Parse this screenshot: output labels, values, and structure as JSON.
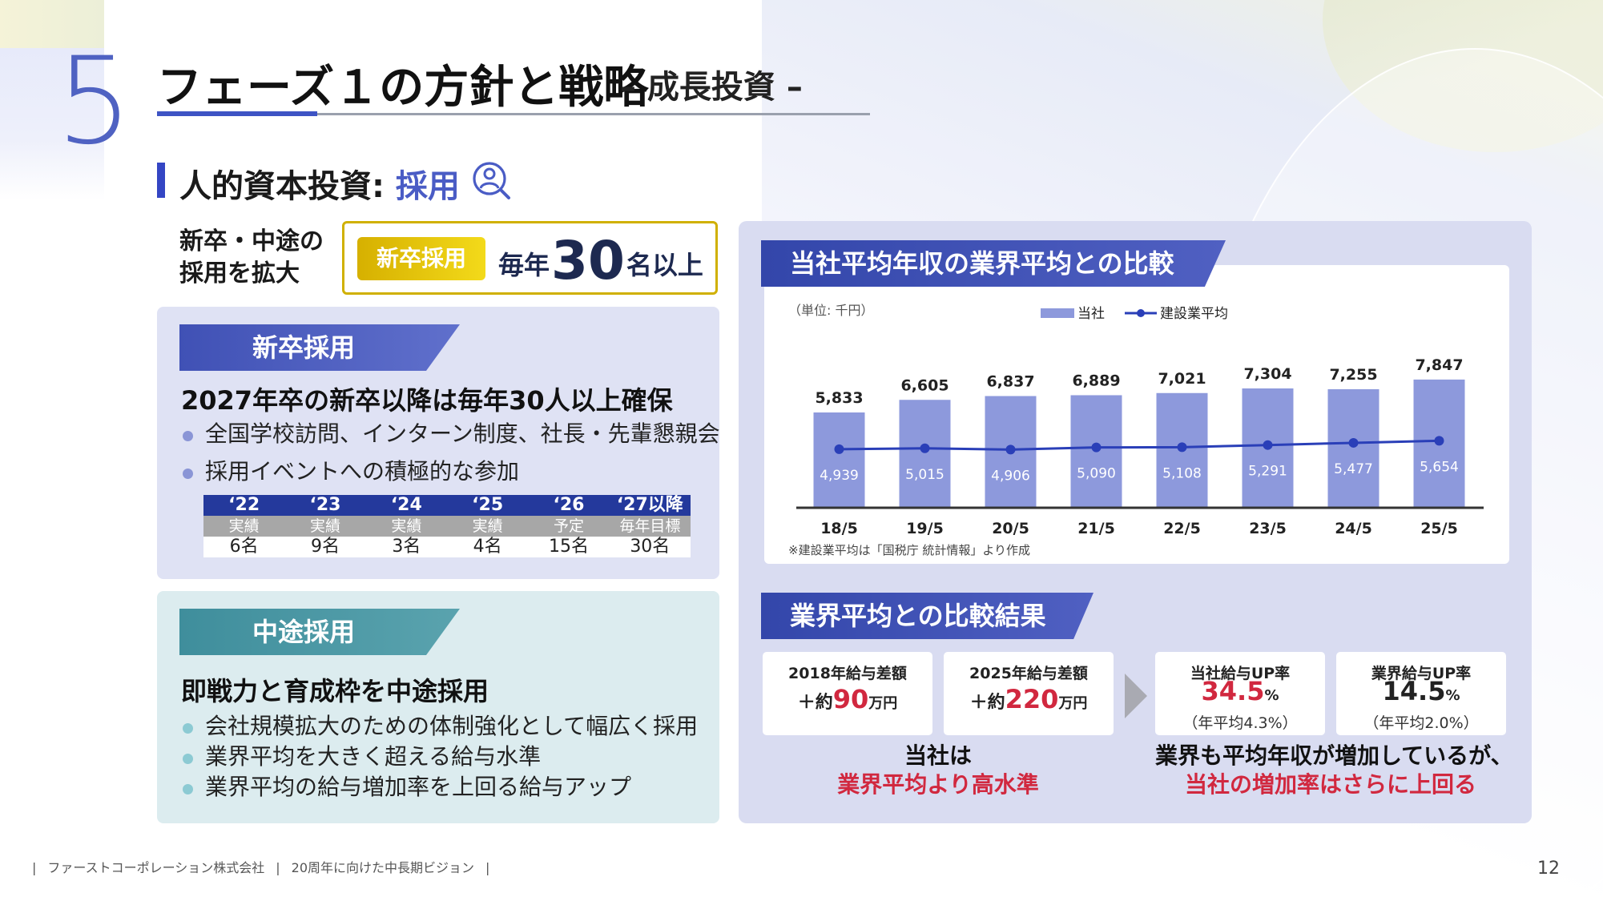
{
  "section_number": "5",
  "title": "フェーズ１の方針と戦略",
  "subtitle": "– 成長投資 –",
  "subheading": {
    "prefix": "人的資本投資: ",
    "accent": "採用",
    "icon": "user-search-icon"
  },
  "intro": {
    "label_line1": "新卒・中途の",
    "label_line2": "採用を拡大",
    "badge": "新卒採用",
    "text_pre": "毎年",
    "number": "30",
    "text_post": "名以上"
  },
  "new_grad": {
    "tab": "新卒採用",
    "headline": "2027年卒の新卒以降は毎年30人以上確保",
    "bullets": [
      "全国学校訪問、インターン制度、社長・先輩懇親会",
      "採用イベントへの積極的な参加"
    ],
    "table": {
      "years": [
        "‘22",
        "‘23",
        "‘24",
        "‘25",
        "‘26",
        "‘27以降"
      ],
      "types": [
        "実績",
        "実績",
        "実績",
        "実績",
        "予定",
        "毎年目標"
      ],
      "values": [
        "6名",
        "9名",
        "3名",
        "4名",
        "15名",
        "30名"
      ]
    }
  },
  "mid_career": {
    "tab": "中途採用",
    "headline": "即戦力と育成枠を中途採用",
    "bullets": [
      "会社規模拡大のための体制強化として幅広く採用",
      "業界平均を大きく超える給与水準",
      "業界平均の給与増加率を上回る給与アップ"
    ]
  },
  "chart_section": {
    "title": "当社平均年収の業界平均との比較",
    "unit_label": "（単位: 千円）",
    "note": "※建設業平均は「国税庁 統計情報」より作成"
  },
  "chart_data": {
    "type": "bar",
    "categories": [
      "18/5",
      "19/5",
      "20/5",
      "21/5",
      "22/5",
      "23/5",
      "24/5",
      "25/5"
    ],
    "series": [
      {
        "name": "当社",
        "type": "bar",
        "values": [
          5833,
          6605,
          6837,
          6889,
          7021,
          7304,
          7255,
          7847
        ],
        "color": "#8d99dc"
      },
      {
        "name": "建設業平均",
        "type": "line",
        "values": [
          4939,
          5015,
          4906,
          5090,
          5108,
          5291,
          5477,
          5654
        ],
        "color": "#2a3fb8"
      }
    ],
    "legend_position": "top-center",
    "grid": false
  },
  "results": {
    "title": "業界平均との比較結果",
    "cards": [
      {
        "label": "2018年給与差額",
        "prefix": "＋約",
        "num": "90",
        "unit": "万円",
        "note": ""
      },
      {
        "label": "2025年給与差額",
        "prefix": "＋約",
        "num": "220",
        "unit": "万円",
        "note": ""
      },
      {
        "label": "当社給与UP率",
        "prefix": "",
        "num": "34.5",
        "unit": "%",
        "note": "（年平均4.3%）"
      },
      {
        "label": "業界給与UP率",
        "prefix": "",
        "num": "14.5",
        "unit": "%",
        "note": "（年平均2.0%）"
      }
    ],
    "conclusion_left_1": "当社は",
    "conclusion_left_2": "業界平均より高水準",
    "conclusion_right_1": "業界も平均年収が増加しているが、",
    "conclusion_right_2": "当社の増加率はさらに上回る"
  },
  "colors": {
    "accent": "#3e54c4",
    "highlight_red": "#d1283f",
    "gold": "#d0b000"
  },
  "footer": {
    "company": "ファーストコーポレーション株式会社",
    "doc": "20周年に向けた中長期ビジョン",
    "page": "12"
  }
}
